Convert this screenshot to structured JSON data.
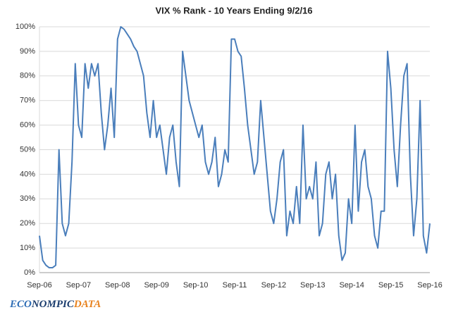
{
  "chart_data": {
    "type": "line",
    "title": "VIX % Rank - 10 Years Ending 9/2/16",
    "categories": [
      "Sep-06",
      null,
      null,
      null,
      null,
      null,
      null,
      null,
      null,
      null,
      null,
      null,
      "Sep-07",
      null,
      null,
      null,
      null,
      null,
      null,
      null,
      null,
      null,
      null,
      null,
      "Sep-08",
      null,
      null,
      null,
      null,
      null,
      null,
      null,
      null,
      null,
      null,
      null,
      "Sep-09",
      null,
      null,
      null,
      null,
      null,
      null,
      null,
      null,
      null,
      null,
      null,
      "Sep-10",
      null,
      null,
      null,
      null,
      null,
      null,
      null,
      null,
      null,
      null,
      null,
      "Sep-11",
      null,
      null,
      null,
      null,
      null,
      null,
      null,
      null,
      null,
      null,
      null,
      "Sep-12",
      null,
      null,
      null,
      null,
      null,
      null,
      null,
      null,
      null,
      null,
      null,
      "Sep-13",
      null,
      null,
      null,
      null,
      null,
      null,
      null,
      null,
      null,
      null,
      null,
      "Sep-14",
      null,
      null,
      null,
      null,
      null,
      null,
      null,
      null,
      null,
      null,
      null,
      "Sep-15",
      null,
      null,
      null,
      null,
      null,
      null,
      null,
      null,
      null,
      null,
      null,
      "Sep-16"
    ],
    "values": [
      15,
      5,
      3,
      2,
      2,
      3,
      50,
      20,
      15,
      20,
      45,
      85,
      60,
      55,
      85,
      75,
      85,
      80,
      85,
      65,
      50,
      60,
      75,
      55,
      95,
      100,
      99,
      97,
      95,
      92,
      90,
      85,
      80,
      65,
      55,
      70,
      55,
      60,
      50,
      40,
      55,
      60,
      45,
      35,
      90,
      80,
      70,
      65,
      60,
      55,
      60,
      45,
      40,
      45,
      55,
      35,
      40,
      50,
      45,
      95,
      95,
      90,
      88,
      75,
      60,
      50,
      40,
      45,
      70,
      55,
      40,
      25,
      20,
      30,
      45,
      50,
      15,
      25,
      20,
      35,
      20,
      60,
      30,
      35,
      30,
      45,
      15,
      20,
      40,
      45,
      30,
      40,
      15,
      5,
      8,
      30,
      20,
      60,
      25,
      45,
      50,
      35,
      30,
      15,
      10,
      25,
      25,
      90,
      75,
      50,
      35,
      60,
      80,
      85,
      40,
      15,
      30,
      70,
      15,
      8,
      20
    ],
    "color": "#4a7ebb",
    "ylim": [
      0,
      100
    ],
    "yticks": [
      {
        "value": 0,
        "label": "0%"
      },
      {
        "value": 10,
        "label": "10%"
      },
      {
        "value": 20,
        "label": "20%"
      },
      {
        "value": 30,
        "label": "30%"
      },
      {
        "value": 40,
        "label": "40%"
      },
      {
        "value": 50,
        "label": "50%"
      },
      {
        "value": 60,
        "label": "60%"
      },
      {
        "value": 70,
        "label": "70%"
      },
      {
        "value": 80,
        "label": "80%"
      },
      {
        "value": 90,
        "label": "90%"
      },
      {
        "value": 100,
        "label": "100%"
      }
    ],
    "grid": true
  },
  "logo": {
    "part1": "ECO",
    "part2": "NOMPIC",
    "part3": "DATA"
  }
}
